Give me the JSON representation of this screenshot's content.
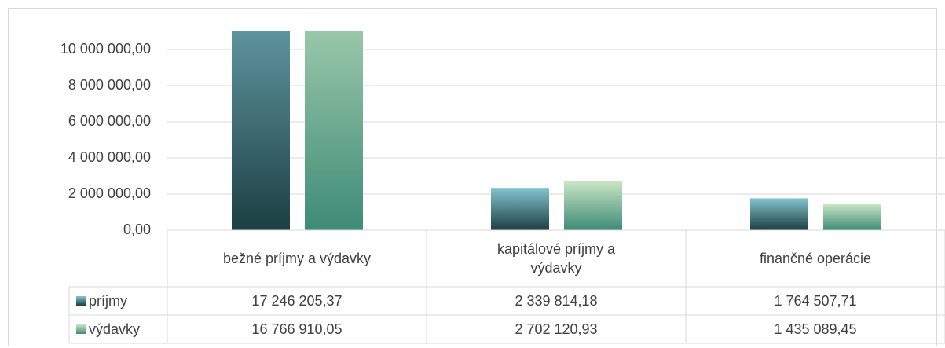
{
  "chart_data": {
    "type": "bar",
    "categories": [
      "bežné príjmy a výdavky",
      "kapitálové príjmy a výdavky",
      "finančné operácie"
    ],
    "series": [
      {
        "name": "príjmy",
        "gradient": [
          "#83c4cf",
          "#1c3f43"
        ],
        "values": [
          17246205.37,
          2339814.18,
          1764507.71
        ],
        "value_labels": [
          "17 246 205,37",
          "2 339 814,18",
          "1 764 507,71"
        ]
      },
      {
        "name": "výdavky",
        "gradient": [
          "#c8e6c3",
          "#3e8b77"
        ],
        "values": [
          16766910.05,
          2702120.93,
          1435089.45
        ],
        "value_labels": [
          "16 766 910,05",
          "2 702 120,93",
          "1 435 089,45"
        ]
      }
    ],
    "ylim": [
      0,
      11000000
    ],
    "yticks": [
      {
        "value": 0,
        "label": "0,00"
      },
      {
        "value": 2000000,
        "label": "2 000 000,00"
      },
      {
        "value": 4000000,
        "label": "4 000 000,00"
      },
      {
        "value": 6000000,
        "label": "6 000 000,00"
      },
      {
        "value": 8000000,
        "label": "8 000 000,00"
      },
      {
        "value": 10000000,
        "label": "10 000 000,00"
      }
    ],
    "grid": true,
    "data_table": true
  }
}
